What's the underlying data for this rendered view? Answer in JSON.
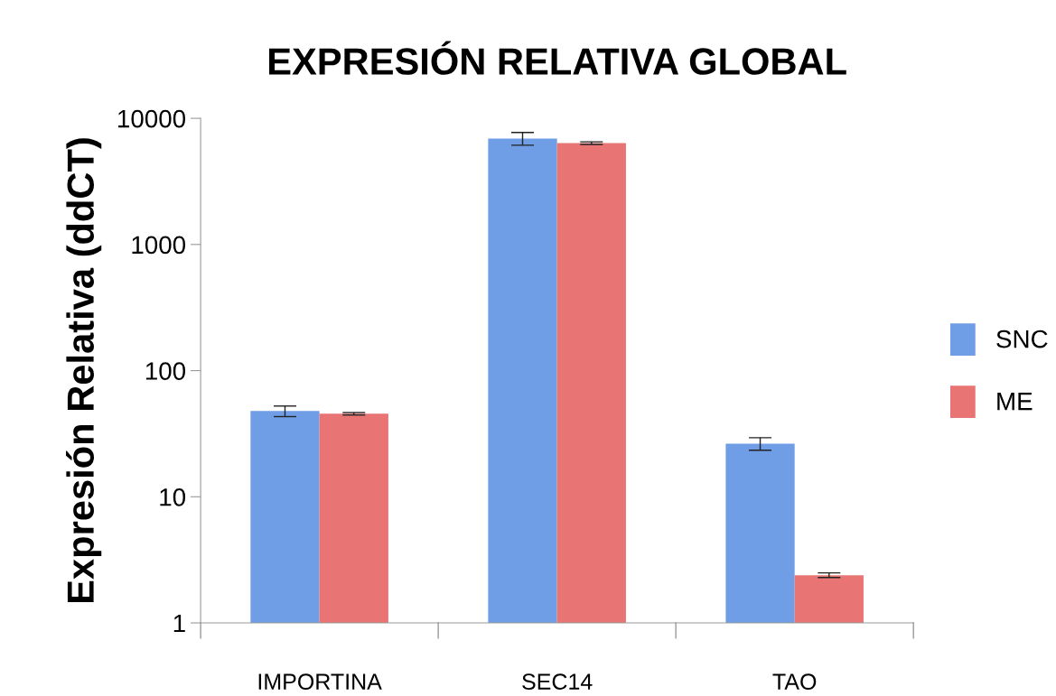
{
  "chart_data": {
    "type": "bar",
    "title": "EXPRESIÓN RELATIVA GLOBAL",
    "ylabel": "Expresión Relativa (ddCT)",
    "categories": [
      "IMPORTINA",
      "SEC14",
      "TAO"
    ],
    "series": [
      {
        "name": "SNC",
        "color": "#6f9de6",
        "values": [
          47.8,
          6920,
          26.4
        ],
        "errors": [
          4.6,
          800,
          3
        ]
      },
      {
        "name": "ME",
        "color": "#e87474",
        "values": [
          45.5,
          6360,
          2.39
        ],
        "errors": [
          1,
          150,
          0.1
        ]
      }
    ],
    "log": true,
    "ylim": [
      1,
      10000
    ],
    "yticks": [
      1,
      10,
      100,
      1000,
      10000
    ],
    "grid": false,
    "legend": "right"
  }
}
